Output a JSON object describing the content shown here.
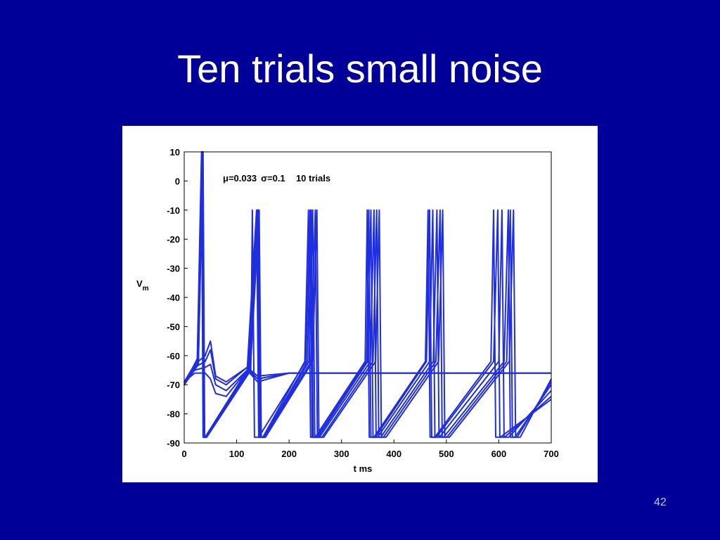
{
  "slide": {
    "title": "Ten trials small noise",
    "page_number": "42",
    "background_color": "#000099",
    "title_color": "#ffffff"
  },
  "chart_data": {
    "type": "line",
    "title": "",
    "xlabel": "t ms",
    "ylabel": "V",
    "ylabel_subscript": "m",
    "xlim": [
      0,
      700
    ],
    "ylim": [
      -90,
      10
    ],
    "x_ticks": [
      0,
      100,
      200,
      300,
      400,
      500,
      600,
      700
    ],
    "y_ticks": [
      10,
      0,
      -10,
      -20,
      -30,
      -40,
      -50,
      -60,
      -70,
      -80,
      -90
    ],
    "grid": false,
    "legend": "none",
    "line_color": "#1f2ee0",
    "annotation": {
      "mu_symbol": "μ",
      "mu_value": "=0.033",
      "sigma_symbol": "σ",
      "sigma_value": "=0.1",
      "trials_text": "10 trials"
    },
    "series": [
      {
        "x": [
          0,
          25,
          33,
          36,
          40,
          120,
          138,
          142,
          150,
          230,
          237,
          241,
          250,
          345,
          349,
          353,
          362,
          460,
          465,
          469,
          478,
          585,
          590,
          594,
          603,
          700
        ],
        "y": [
          -70,
          -61,
          10,
          -88,
          -88,
          -65,
          -10,
          -88,
          -88,
          -62,
          -10,
          -88,
          -88,
          -62,
          -10,
          -88,
          -88,
          -62,
          -10,
          -88,
          -88,
          -62,
          -10,
          -88,
          -88,
          -75
        ]
      },
      {
        "x": [
          0,
          25,
          34,
          37,
          41,
          122,
          140,
          144,
          152,
          235,
          242,
          246,
          255,
          350,
          356,
          360,
          369,
          468,
          474,
          478,
          487,
          600,
          606,
          610,
          619,
          700
        ],
        "y": [
          -70,
          -62,
          10,
          -88,
          -88,
          -65,
          -10,
          -88,
          -88,
          -62,
          -10,
          -88,
          -88,
          -62,
          -10,
          -88,
          -88,
          -62,
          -10,
          -88,
          -88,
          -62,
          -10,
          -88,
          -88,
          -72
        ]
      },
      {
        "x": [
          0,
          26,
          34,
          37,
          41,
          124,
          141,
          145,
          153,
          238,
          245,
          249,
          258,
          355,
          362,
          366,
          375,
          475,
          482,
          486,
          495,
          610,
          618,
          622,
          631,
          700
        ],
        "y": [
          -70,
          -62,
          10,
          -88,
          -88,
          -65,
          -10,
          -88,
          -88,
          -62,
          -10,
          -88,
          -88,
          -62,
          -10,
          -88,
          -88,
          -62,
          -10,
          -88,
          -88,
          -62,
          -10,
          -88,
          -88,
          -70
        ]
      },
      {
        "x": [
          0,
          26,
          35,
          38,
          42,
          125,
          142,
          146,
          154,
          242,
          250,
          254,
          263,
          360,
          367,
          371,
          380,
          480,
          488,
          492,
          501,
          615,
          622,
          626,
          635,
          700
        ],
        "y": [
          -70,
          -63,
          10,
          -88,
          -88,
          -65,
          -10,
          -88,
          -88,
          -62,
          -10,
          -88,
          -88,
          -62,
          -10,
          -88,
          -88,
          -62,
          -10,
          -88,
          -88,
          -62,
          -10,
          -88,
          -88,
          -69
        ]
      },
      {
        "x": [
          0,
          27,
          35,
          38,
          42,
          126,
          143,
          147,
          155,
          245,
          253,
          257,
          266,
          365,
          372,
          376,
          385,
          485,
          493,
          497,
          506,
          620,
          628,
          632,
          641,
          700
        ],
        "y": [
          -70,
          -63,
          10,
          -88,
          -88,
          -65,
          -10,
          -88,
          -88,
          -62,
          -10,
          -88,
          -88,
          -62,
          -10,
          -88,
          -88,
          -62,
          -10,
          -88,
          -88,
          -62,
          -10,
          -88,
          -88,
          -68
        ]
      },
      {
        "x": [
          0,
          27,
          36,
          39,
          43,
          127,
          130,
          134,
          142,
          232,
          240,
          244,
          253,
          348,
          352,
          356,
          365,
          462,
          468,
          472,
          481,
          590,
          598,
          602,
          611,
          700
        ],
        "y": [
          -70,
          -63,
          10,
          -88,
          -88,
          -65,
          -10,
          -88,
          -88,
          -62,
          -10,
          -88,
          -88,
          -62,
          -10,
          -88,
          -88,
          -62,
          -10,
          -88,
          -88,
          -62,
          -10,
          -88,
          -88,
          -74
        ]
      },
      {
        "x": [
          0,
          20,
          40,
          50,
          60,
          80,
          120,
          140,
          200,
          300,
          400,
          500,
          600,
          700
        ],
        "y": [
          -69,
          -63,
          -60,
          -55,
          -67,
          -69,
          -64,
          -67,
          -66,
          -66,
          -66,
          -66,
          -66,
          -66
        ]
      },
      {
        "x": [
          0,
          20,
          40,
          50,
          60,
          80,
          120,
          140,
          200,
          300,
          400,
          500,
          600,
          700
        ],
        "y": [
          -69,
          -64,
          -62,
          -58,
          -68,
          -70,
          -64,
          -68,
          -66,
          -66,
          -66,
          -66,
          -66,
          -66
        ]
      },
      {
        "x": [
          0,
          20,
          40,
          50,
          60,
          80,
          120,
          140,
          200,
          300,
          400,
          500,
          600,
          700
        ],
        "y": [
          -69,
          -65,
          -64,
          -63,
          -70,
          -72,
          -65,
          -68,
          -66,
          -66,
          -66,
          -66,
          -66,
          -66
        ]
      },
      {
        "x": [
          0,
          20,
          40,
          50,
          60,
          80,
          120,
          140,
          200,
          300,
          400,
          500,
          600,
          700
        ],
        "y": [
          -69,
          -66,
          -66,
          -68,
          -73,
          -74,
          -65,
          -69,
          -66,
          -66,
          -66,
          -66,
          -66,
          -66
        ]
      }
    ]
  }
}
